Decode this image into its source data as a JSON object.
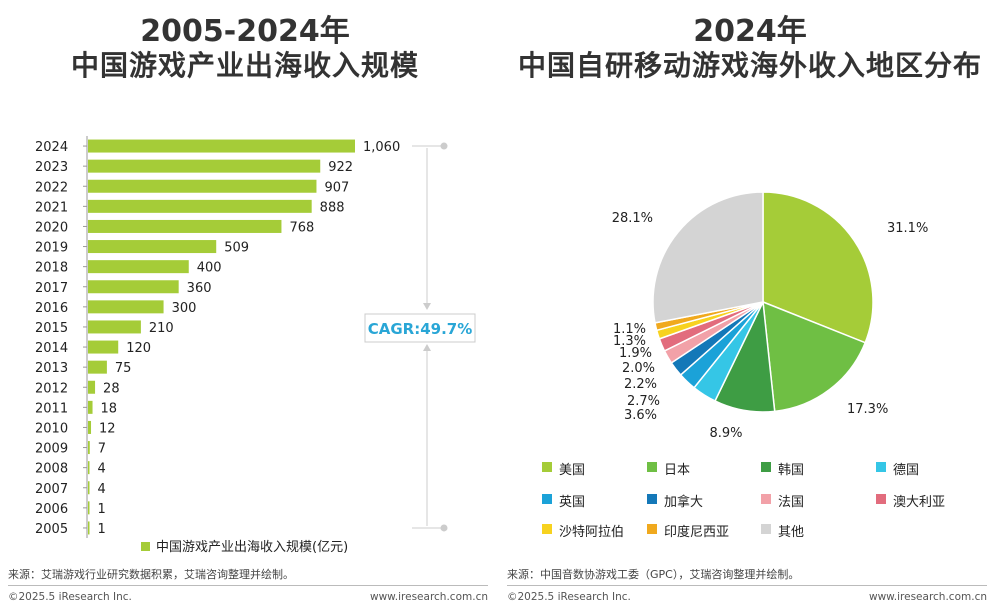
{
  "left": {
    "title_line1": "2005-2024年",
    "title_line2": "中国游戏产业出海收入规模",
    "cagr_label": "CAGR:49.7%",
    "source": "来源：艾瑞游戏行业研究数据积累，艾瑞咨询整理并绘制。",
    "footer_left": "©2025.5 iResearch Inc.",
    "footer_right": "www.iresearch.com.cn",
    "colors": {
      "bar": "#A5CC38",
      "cagr": "#29A6D6",
      "bracket": "#cccccc"
    }
  },
  "right": {
    "title_line1": "2024年",
    "title_line2": "中国自研移动游戏海外收入地区分布",
    "source": "来源：中国音数协游戏工委（GPC），艾瑞咨询整理并绘制。",
    "footer_left": "©2025.5 iResearch Inc.",
    "footer_right": "www.iresearch.com.cn"
  },
  "chart_data": [
    {
      "type": "bar",
      "orientation": "horizontal",
      "categories": [
        "2024",
        "2023",
        "2022",
        "2021",
        "2020",
        "2019",
        "2018",
        "2017",
        "2016",
        "2015",
        "2014",
        "2013",
        "2012",
        "2011",
        "2010",
        "2009",
        "2008",
        "2007",
        "2006",
        "2005"
      ],
      "series": [
        {
          "name": "中国游戏产业出海收入规模(亿元)",
          "values": [
            1060,
            922,
            907,
            888,
            768,
            509,
            400,
            360,
            300,
            210,
            120,
            75,
            28,
            18,
            12,
            7,
            4,
            4,
            1,
            1
          ],
          "labels": [
            "1,060",
            "922",
            "907",
            "888",
            "768",
            "509",
            "400",
            "360",
            "300",
            "210",
            "120",
            "75",
            "28",
            "18",
            "12",
            "7",
            "4",
            "4",
            "1",
            "1"
          ]
        }
      ],
      "annotation": "CAGR:49.7%",
      "legend_position": "bottom"
    },
    {
      "type": "pie",
      "categories": [
        "美国",
        "日本",
        "韩国",
        "德国",
        "英国",
        "加拿大",
        "法国",
        "澳大利亚",
        "沙特阿拉伯",
        "印度尼西亚",
        "其他"
      ],
      "values": [
        31.1,
        17.3,
        8.9,
        3.6,
        2.7,
        2.2,
        2.0,
        1.9,
        1.3,
        1.1,
        28.1
      ],
      "labels": [
        "31.1%",
        "17.3%",
        "8.9%",
        "3.6%",
        "2.7%",
        "2.2%",
        "2.0%",
        "1.9%",
        "1.3%",
        "1.1%",
        "28.1%"
      ],
      "colors": [
        "#A5CC38",
        "#6FBF44",
        "#3E9D44",
        "#35C6E6",
        "#1BA2D8",
        "#1478B8",
        "#F2A1A8",
        "#E26C7D",
        "#F7D21F",
        "#F0A91E",
        "#D4D4D4"
      ],
      "legend_position": "bottom"
    }
  ]
}
